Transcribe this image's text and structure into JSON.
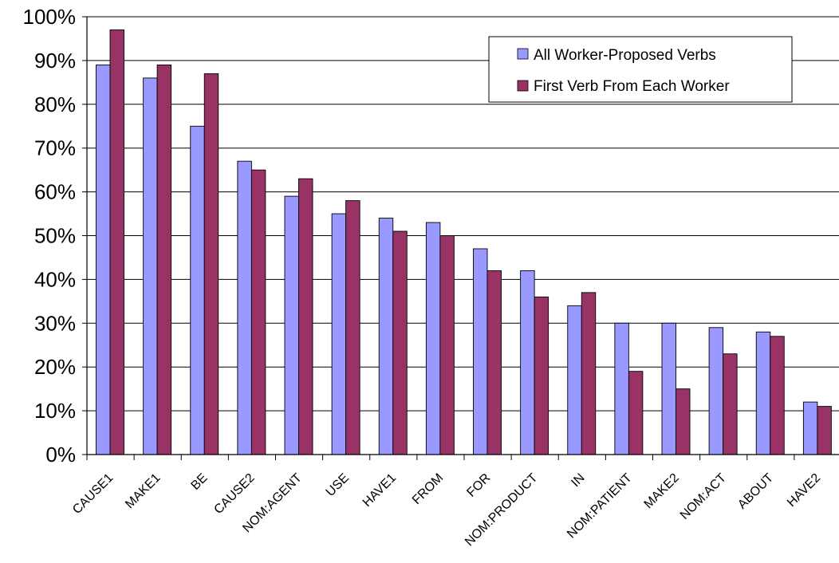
{
  "chart_data": {
    "type": "bar",
    "title": "",
    "xlabel": "",
    "ylabel": "",
    "ylim": [
      0,
      100
    ],
    "yticks": [
      "0%",
      "10%",
      "20%",
      "30%",
      "40%",
      "50%",
      "60%",
      "70%",
      "80%",
      "90%",
      "100%"
    ],
    "grid": true,
    "legend_position": "top-right",
    "categories": [
      "CAUSE1",
      "MAKE1",
      "BE",
      "CAUSE2",
      "NOM:AGENT",
      "USE",
      "HAVE1",
      "FROM",
      "FOR",
      "NOM:PRODUCT",
      "IN",
      "NOM:PATIENT",
      "MAKE2",
      "NOM:ACT",
      "ABOUT",
      "HAVE2"
    ],
    "series": [
      {
        "name": "All Worker-Proposed Verbs",
        "color": "#9999ff",
        "values": [
          89,
          86,
          75,
          67,
          59,
          55,
          54,
          53,
          47,
          42,
          34,
          30,
          30,
          29,
          28,
          12
        ]
      },
      {
        "name": "First Verb From Each Worker",
        "color": "#993366",
        "values": [
          97,
          89,
          87,
          65,
          63,
          58,
          51,
          50,
          42,
          36,
          37,
          19,
          15,
          23,
          27,
          11
        ]
      }
    ]
  }
}
